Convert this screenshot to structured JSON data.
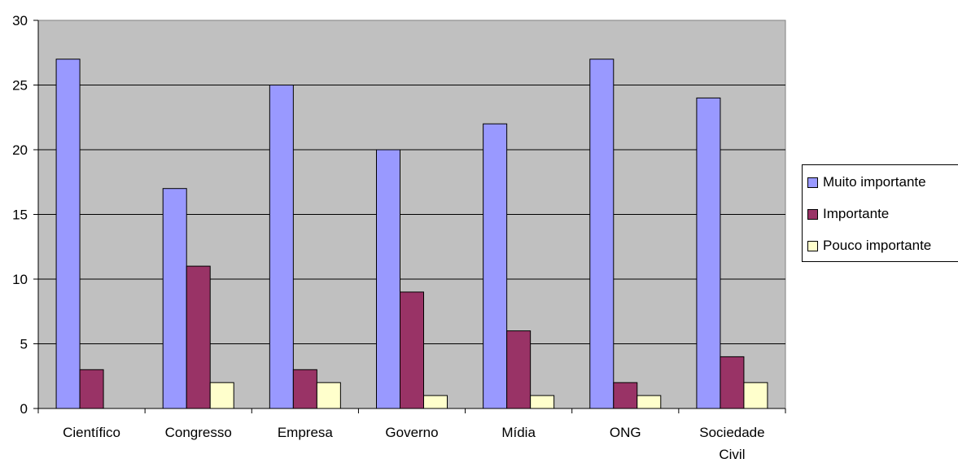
{
  "chart_data": {
    "type": "bar",
    "categories": [
      "Científico",
      "Congresso",
      "Empresa",
      "Governo",
      "Mídia",
      "ONG",
      "Sociedade Civil"
    ],
    "category_lines": [
      [
        "Científico"
      ],
      [
        "Congresso"
      ],
      [
        "Empresa"
      ],
      [
        "Governo"
      ],
      [
        "Mídia"
      ],
      [
        "ONG"
      ],
      [
        "Sociedade",
        "Civil"
      ]
    ],
    "series": [
      {
        "name": "Muito importante",
        "color": "#9999ff",
        "values": [
          27,
          17,
          25,
          20,
          22,
          27,
          24
        ]
      },
      {
        "name": "Importante",
        "color": "#993366",
        "values": [
          3,
          11,
          3,
          9,
          6,
          2,
          4
        ]
      },
      {
        "name": "Pouco importante",
        "color": "#ffffcc",
        "values": [
          0,
          2,
          2,
          1,
          1,
          1,
          2
        ]
      }
    ],
    "ylim": [
      0,
      30
    ],
    "yticks": [
      0,
      5,
      10,
      15,
      20,
      25,
      30
    ],
    "grid": true,
    "plot_background": "#c0c0c0",
    "legend_position": "right",
    "title": "",
    "xlabel": "",
    "ylabel": ""
  }
}
